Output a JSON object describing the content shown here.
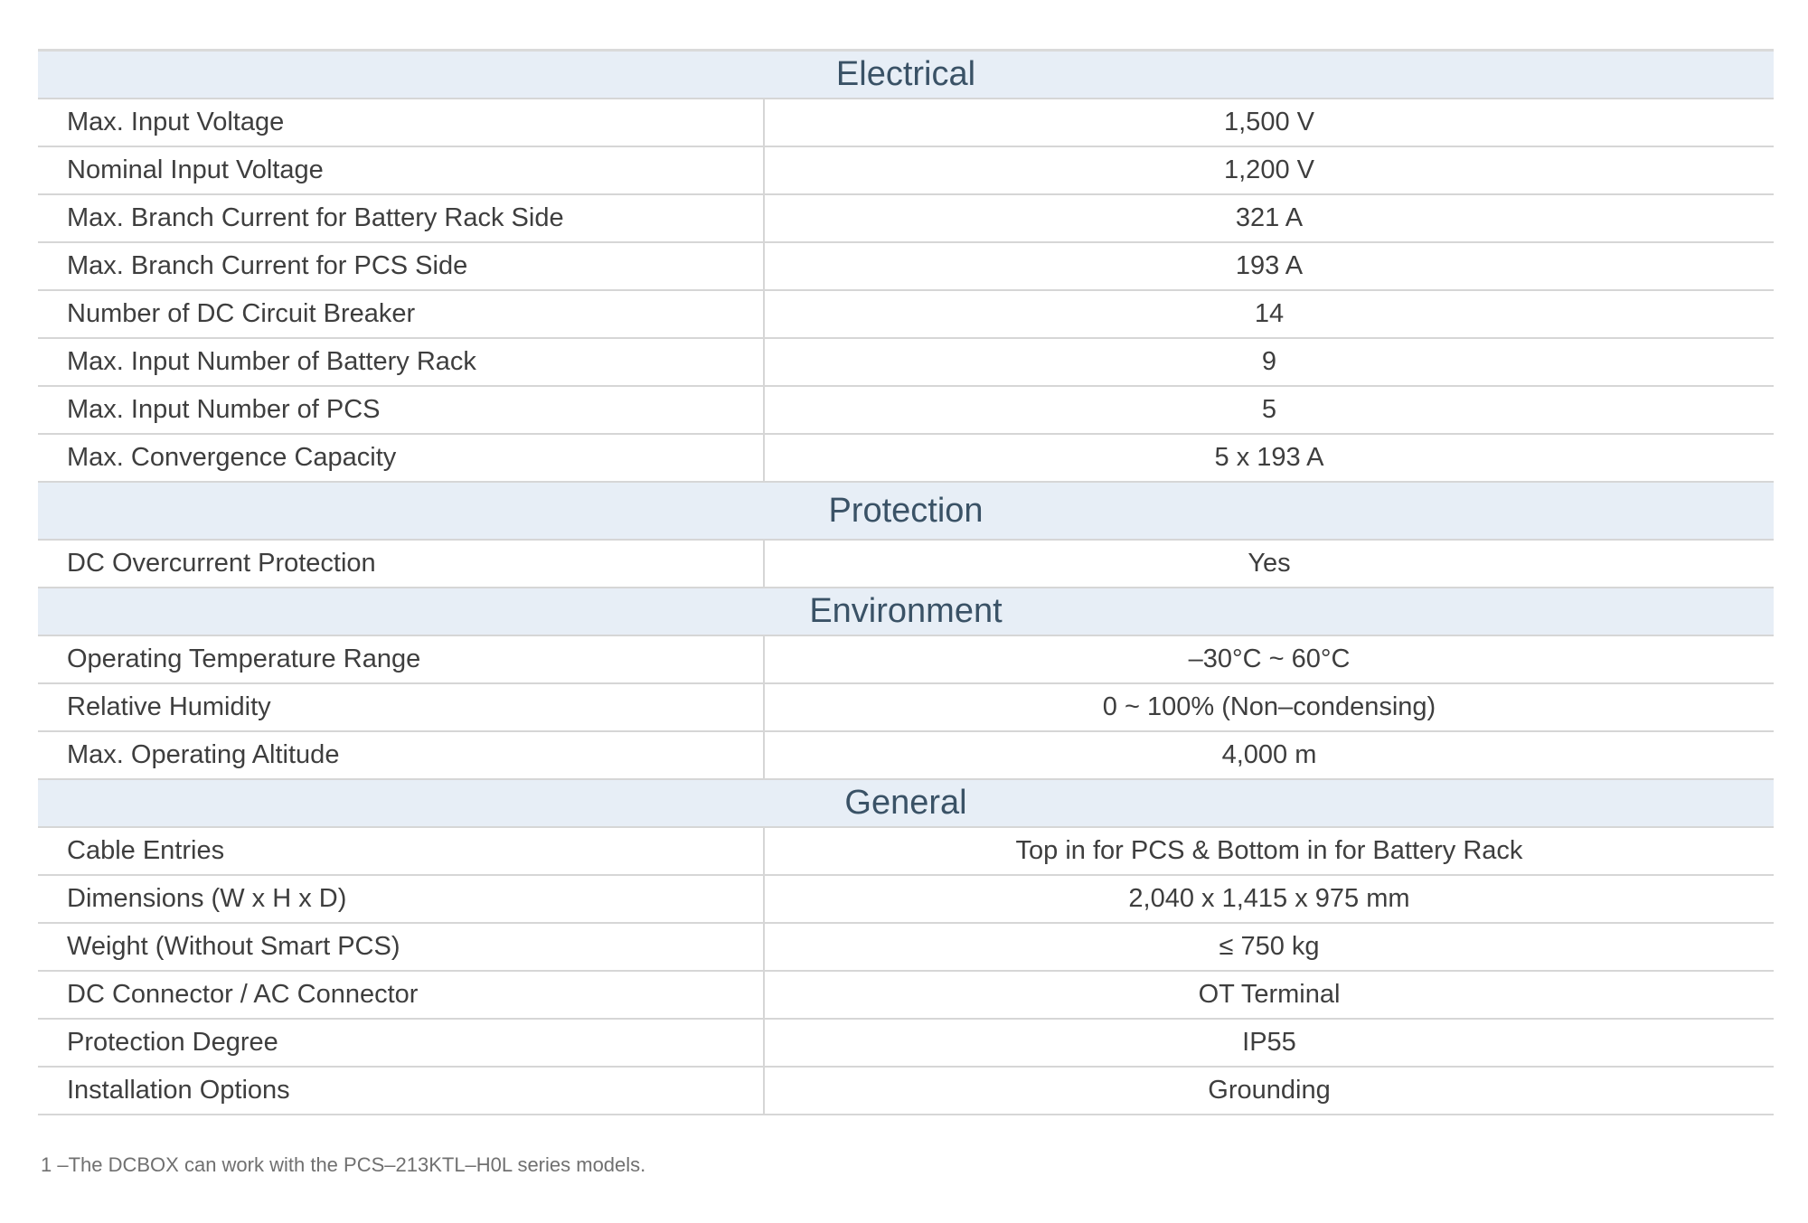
{
  "sections": [
    {
      "title": "Electrical",
      "rows": [
        {
          "label": "Max. Input Voltage",
          "value": "1,500 V"
        },
        {
          "label": "Nominal Input Voltage",
          "value": "1,200 V"
        },
        {
          "label": "Max. Branch Current for Battery Rack Side",
          "value": "321 A"
        },
        {
          "label": "Max. Branch Current for PCS Side",
          "value": "193 A"
        },
        {
          "label": "Number of DC Circuit Breaker",
          "value": "14"
        },
        {
          "label": "Max. Input Number of Battery Rack",
          "value": "9"
        },
        {
          "label": "Max. Input Number of PCS",
          "value": "5"
        },
        {
          "label": "Max. Convergence Capacity",
          "value": "5 x 193 A"
        }
      ]
    },
    {
      "title": "Protection",
      "rows": [
        {
          "label": "DC Overcurrent Protection",
          "value": "Yes"
        }
      ]
    },
    {
      "title": "Environment",
      "rows": [
        {
          "label": "Operating Temperature Range",
          "value": "–30°C ~ 60°C"
        },
        {
          "label": "Relative Humidity",
          "value": "0 ~ 100% (Non–condensing)"
        },
        {
          "label": "Max. Operating Altitude",
          "value": "4,000 m"
        }
      ]
    },
    {
      "title": "General",
      "rows": [
        {
          "label": "Cable Entries",
          "value": "Top in for PCS & Bottom in for Battery Rack"
        },
        {
          "label": "Dimensions (W x H x D)",
          "value": "2,040 x 1,415 x 975 mm"
        },
        {
          "label": "Weight (Without Smart PCS)",
          "value": "≤ 750 kg"
        },
        {
          "label": "DC Connector / AC Connector",
          "value": "OT Terminal"
        },
        {
          "label": "Protection Degree",
          "value": "IP55"
        },
        {
          "label": "Installation Options",
          "value": "Grounding"
        }
      ]
    }
  ],
  "footnote": "1 –The DCBOX can work with the PCS–213KTL–H0L series models."
}
